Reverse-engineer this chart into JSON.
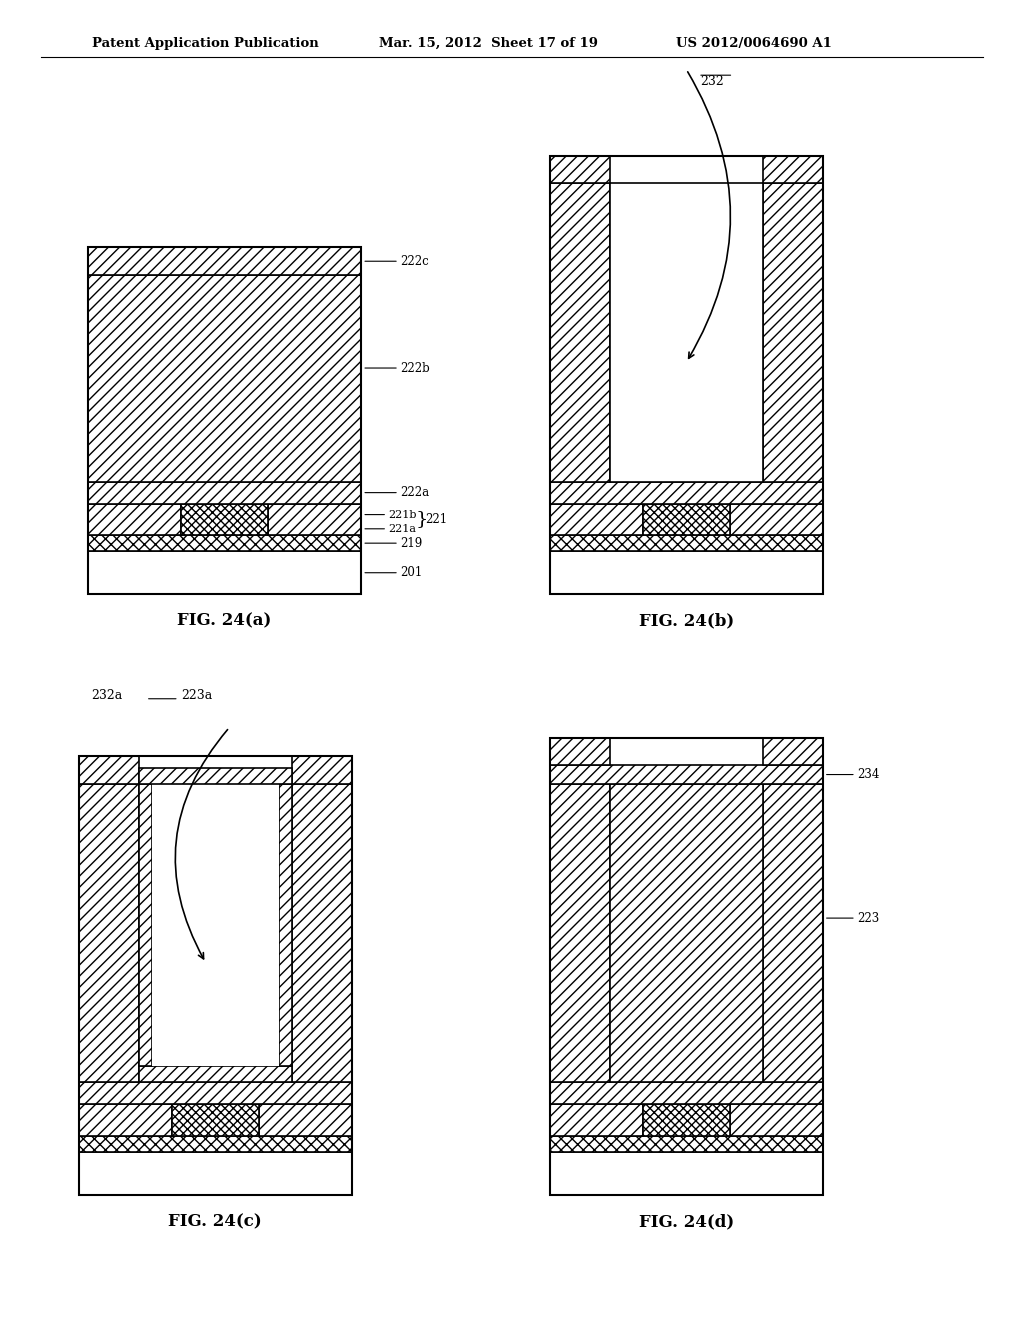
{
  "header_left": "Patent Application Publication",
  "header_mid": "Mar. 15, 2012  Sheet 17 of 19",
  "header_right": "US 2012/0064690 A1",
  "bg_color": "#ffffff",
  "fig_labels": [
    "FIG. 24(a)",
    "FIG. 24(b)",
    "FIG. 24(c)",
    "FIG. 24(d)"
  ]
}
